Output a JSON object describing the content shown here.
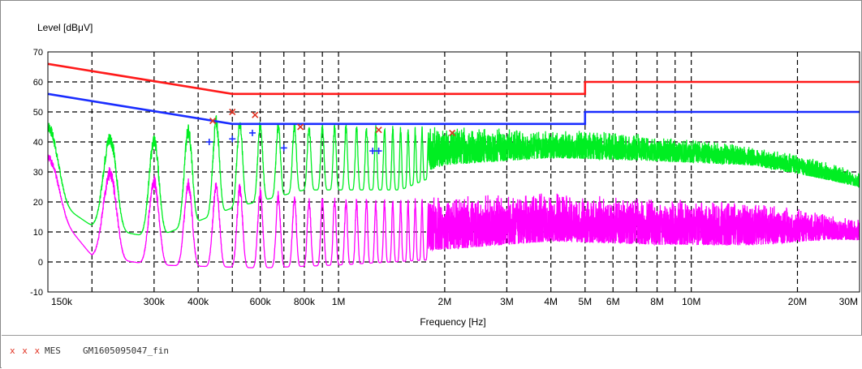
{
  "colors": {
    "limit_qp": "#ff1a1a",
    "limit_avg": "#1a2dff",
    "trace_peak": "#00ee22",
    "trace_avg": "#ff00ff",
    "marker_qp": "#e03020",
    "marker_avg": "#1a2dff",
    "grid": "#000000",
    "frame": "#8a8a8a"
  },
  "legend": {
    "marks": "x x x",
    "label": "MES",
    "file": "GM1605095047_fin"
  },
  "chart_data": {
    "type": "line",
    "ylabel": "Level [dBμV]",
    "xlabel": "Frequency [Hz]",
    "x_scale": "log",
    "xlim": [
      150000,
      30000000
    ],
    "ylim": [
      -10,
      70
    ],
    "grid": "dashed",
    "x_ticks": [
      {
        "value": 150000,
        "label": "150k"
      },
      {
        "value": 300000,
        "label": "300k"
      },
      {
        "value": 400000,
        "label": "400k"
      },
      {
        "value": 600000,
        "label": "600k"
      },
      {
        "value": 800000,
        "label": "800k"
      },
      {
        "value": 1000000,
        "label": "1M"
      },
      {
        "value": 2000000,
        "label": "2M"
      },
      {
        "value": 3000000,
        "label": "3M"
      },
      {
        "value": 4000000,
        "label": "4M"
      },
      {
        "value": 5000000,
        "label": "5M"
      },
      {
        "value": 6000000,
        "label": "6M"
      },
      {
        "value": 8000000,
        "label": "8M"
      },
      {
        "value": 10000000,
        "label": "10M"
      },
      {
        "value": 20000000,
        "label": "20M"
      },
      {
        "value": 30000000,
        "label": "30M"
      }
    ],
    "x_grid_only": [
      200000,
      500000,
      700000,
      900000,
      7000000,
      9000000
    ],
    "y_ticks": [
      {
        "value": 70,
        "label": "70"
      },
      {
        "value": 60,
        "label": "60"
      },
      {
        "value": 50,
        "label": "50"
      },
      {
        "value": 40,
        "label": "40"
      },
      {
        "value": 30,
        "label": "30"
      },
      {
        "value": 20,
        "label": "20"
      },
      {
        "value": 10,
        "label": "10"
      },
      {
        "value": 0,
        "label": "0"
      },
      {
        "value": -10,
        "label": "-10"
      }
    ],
    "limit_lines": [
      {
        "id": "qp",
        "points": [
          [
            150000,
            66
          ],
          [
            500000,
            56
          ],
          [
            5000000,
            56
          ],
          [
            5000000,
            60
          ],
          [
            30000000,
            60
          ]
        ]
      },
      {
        "id": "avg",
        "points": [
          [
            150000,
            56
          ],
          [
            500000,
            46
          ],
          [
            5000000,
            46
          ],
          [
            5000000,
            50
          ],
          [
            30000000,
            50
          ]
        ]
      }
    ],
    "series": [
      {
        "id": "peak",
        "style": "oscillating",
        "envelope_max": [
          [
            150000,
            47
          ],
          [
            200000,
            44
          ],
          [
            300000,
            43
          ],
          [
            450000,
            49
          ],
          [
            700000,
            47
          ],
          [
            1200000,
            46
          ],
          [
            2000000,
            45
          ],
          [
            4000000,
            44
          ],
          [
            7000000,
            43
          ],
          [
            12000000,
            40
          ],
          [
            20000000,
            36
          ],
          [
            30000000,
            30
          ]
        ],
        "envelope_min": [
          [
            150000,
            22
          ],
          [
            200000,
            12
          ],
          [
            300000,
            8
          ],
          [
            500000,
            18
          ],
          [
            800000,
            24
          ],
          [
            1500000,
            24
          ],
          [
            2000000,
            30
          ],
          [
            4000000,
            33
          ],
          [
            8000000,
            32
          ],
          [
            15000000,
            31
          ],
          [
            25000000,
            26
          ],
          [
            30000000,
            24
          ]
        ]
      },
      {
        "id": "average",
        "style": "oscillating",
        "envelope_max": [
          [
            150000,
            36
          ],
          [
            200000,
            33
          ],
          [
            300000,
            29
          ],
          [
            500000,
            27
          ],
          [
            800000,
            22
          ],
          [
            1500000,
            21
          ],
          [
            2000000,
            22
          ],
          [
            4000000,
            23
          ],
          [
            8000000,
            21
          ],
          [
            15000000,
            20
          ],
          [
            25000000,
            16
          ],
          [
            30000000,
            14
          ]
        ],
        "envelope_min": [
          [
            150000,
            20
          ],
          [
            200000,
            2
          ],
          [
            300000,
            -1
          ],
          [
            600000,
            -2
          ],
          [
            1000000,
            -1
          ],
          [
            2000000,
            1
          ],
          [
            4000000,
            4
          ],
          [
            8000000,
            3
          ],
          [
            15000000,
            3
          ],
          [
            25000000,
            6
          ],
          [
            30000000,
            6
          ]
        ]
      }
    ],
    "markers_qp": [
      [
        440000,
        47
      ],
      [
        500000,
        50
      ],
      [
        580000,
        49
      ],
      [
        780000,
        45
      ],
      [
        1300000,
        44
      ],
      [
        2100000,
        43
      ]
    ],
    "markers_avg": [
      [
        430000,
        40
      ],
      [
        500000,
        41
      ],
      [
        570000,
        43
      ],
      [
        700000,
        38
      ],
      [
        1250000,
        37
      ],
      [
        1300000,
        37
      ]
    ]
  }
}
